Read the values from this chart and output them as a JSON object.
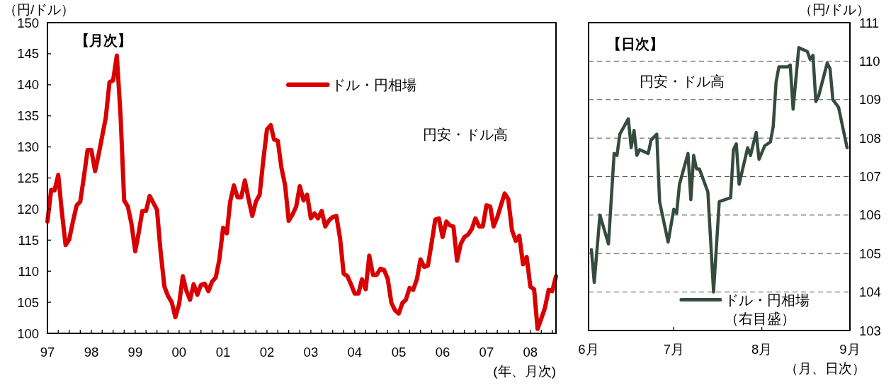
{
  "chart_data": [
    {
      "type": "line",
      "title": "【月次】",
      "annotations": [
        "円安・ドル高"
      ],
      "ylabel": "（円/ドル）",
      "xlabel": "(年、月次)",
      "legend": "top",
      "x": [
        "1997-01",
        "1997-02",
        "1997-03",
        "1997-04",
        "1997-05",
        "1997-06",
        "1997-07",
        "1997-08",
        "1997-09",
        "1997-10",
        "1997-11",
        "1997-12",
        "1998-01",
        "1998-02",
        "1998-03",
        "1998-04",
        "1998-05",
        "1998-06",
        "1998-07",
        "1998-08",
        "1998-09",
        "1998-10",
        "1998-11",
        "1998-12",
        "1999-01",
        "1999-02",
        "1999-03",
        "1999-04",
        "1999-05",
        "1999-06",
        "1999-07",
        "1999-08",
        "1999-09",
        "1999-10",
        "1999-11",
        "1999-12",
        "2000-01",
        "2000-02",
        "2000-03",
        "2000-04",
        "2000-05",
        "2000-06",
        "2000-07",
        "2000-08",
        "2000-09",
        "2000-10",
        "2000-11",
        "2000-12",
        "2001-01",
        "2001-02",
        "2001-03",
        "2001-04",
        "2001-05",
        "2001-06",
        "2001-07",
        "2001-08",
        "2001-09",
        "2001-10",
        "2001-11",
        "2001-12",
        "2002-01",
        "2002-02",
        "2002-03",
        "2002-04",
        "2002-05",
        "2002-06",
        "2002-07",
        "2002-08",
        "2002-09",
        "2002-10",
        "2002-11",
        "2002-12",
        "2003-01",
        "2003-02",
        "2003-03",
        "2003-04",
        "2003-05",
        "2003-06",
        "2003-07",
        "2003-08",
        "2003-09",
        "2003-10",
        "2003-11",
        "2003-12",
        "2004-01",
        "2004-02",
        "2004-03",
        "2004-04",
        "2004-05",
        "2004-06",
        "2004-07",
        "2004-08",
        "2004-09",
        "2004-10",
        "2004-11",
        "2004-12",
        "2005-01",
        "2005-02",
        "2005-03",
        "2005-04",
        "2005-05",
        "2005-06",
        "2005-07",
        "2005-08",
        "2005-09",
        "2005-10",
        "2005-11",
        "2005-12",
        "2006-01",
        "2006-02",
        "2006-03",
        "2006-04",
        "2006-05",
        "2006-06",
        "2006-07",
        "2006-08",
        "2006-09",
        "2006-10",
        "2006-11",
        "2006-12",
        "2007-01",
        "2007-02",
        "2007-03",
        "2007-04",
        "2007-05",
        "2007-06",
        "2007-07",
        "2007-08",
        "2007-09",
        "2007-10",
        "2007-11",
        "2007-12",
        "2008-01",
        "2008-02",
        "2008-03",
        "2008-04",
        "2008-05",
        "2008-06",
        "2008-07",
        "2008-08"
      ],
      "series": [
        {
          "name": "ドル・円相場",
          "color": "#d80000",
          "values": [
            118.0,
            123.1,
            123.0,
            125.5,
            119.5,
            114.2,
            115.1,
            118.0,
            120.6,
            121.2,
            125.3,
            129.5,
            129.5,
            126.1,
            128.6,
            131.7,
            134.7,
            140.4,
            140.7,
            144.7,
            135.1,
            121.4,
            120.4,
            117.6,
            113.2,
            116.4,
            119.7,
            119.7,
            122.1,
            121.0,
            119.9,
            113.0,
            107.5,
            106.0,
            105.0,
            102.6,
            104.7,
            109.2,
            106.9,
            105.4,
            107.9,
            106.2,
            107.8,
            108.0,
            106.8,
            108.3,
            109.0,
            111.9,
            117.0,
            116.1,
            121.2,
            123.8,
            121.9,
            121.9,
            124.6,
            121.6,
            118.9,
            121.2,
            122.3,
            127.8,
            132.8,
            133.5,
            131.2,
            131.0,
            126.7,
            123.8,
            118.1,
            119.1,
            120.4,
            123.7,
            121.4,
            122.3,
            118.5,
            119.3,
            118.5,
            119.7,
            117.2,
            118.2,
            118.7,
            118.9,
            115.3,
            109.6,
            109.2,
            107.9,
            106.4,
            106.4,
            108.7,
            107.1,
            112.5,
            109.4,
            109.4,
            110.4,
            110.2,
            108.8,
            104.9,
            103.7,
            103.2,
            104.9,
            105.4,
            107.3,
            107.0,
            108.7,
            111.9,
            110.7,
            110.9,
            114.5,
            118.3,
            118.5,
            115.5,
            118.0,
            117.4,
            117.2,
            111.7,
            114.4,
            115.5,
            115.9,
            116.8,
            118.5,
            117.2,
            117.2,
            120.6,
            120.4,
            117.2,
            118.7,
            120.6,
            122.5,
            121.6,
            116.6,
            114.9,
            115.7,
            111.1,
            112.3,
            107.5,
            107.1,
            100.7,
            102.4,
            104.1,
            107.0,
            106.8,
            109.2
          ]
        }
      ],
      "xlim": [
        "1997-01",
        "2008-08"
      ],
      "xticks": [
        {
          "value": "1997-01",
          "label": "97"
        },
        {
          "value": "1997-04",
          "label": null
        },
        {
          "value": "1997-07",
          "label": null
        },
        {
          "value": "1997-10",
          "label": null
        },
        {
          "value": "1998-01",
          "label": "98"
        },
        {
          "value": "1998-04",
          "label": null
        },
        {
          "value": "1998-07",
          "label": null
        },
        {
          "value": "1998-10",
          "label": null
        },
        {
          "value": "1999-01",
          "label": "99"
        },
        {
          "value": "1999-04",
          "label": null
        },
        {
          "value": "1999-07",
          "label": null
        },
        {
          "value": "1999-10",
          "label": null
        },
        {
          "value": "2000-01",
          "label": "00"
        },
        {
          "value": "2000-04",
          "label": null
        },
        {
          "value": "2000-07",
          "label": null
        },
        {
          "value": "2000-10",
          "label": null
        },
        {
          "value": "2001-01",
          "label": "01"
        },
        {
          "value": "2001-04",
          "label": null
        },
        {
          "value": "2001-07",
          "label": null
        },
        {
          "value": "2001-10",
          "label": null
        },
        {
          "value": "2002-01",
          "label": "02"
        },
        {
          "value": "2002-04",
          "label": null
        },
        {
          "value": "2002-07",
          "label": null
        },
        {
          "value": "2002-10",
          "label": null
        },
        {
          "value": "2003-01",
          "label": "03"
        },
        {
          "value": "2003-04",
          "label": null
        },
        {
          "value": "2003-07",
          "label": null
        },
        {
          "value": "2003-10",
          "label": null
        },
        {
          "value": "2004-01",
          "label": "04"
        },
        {
          "value": "2004-04",
          "label": null
        },
        {
          "value": "2004-07",
          "label": null
        },
        {
          "value": "2004-10",
          "label": null
        },
        {
          "value": "2005-01",
          "label": "05"
        },
        {
          "value": "2005-04",
          "label": null
        },
        {
          "value": "2005-07",
          "label": null
        },
        {
          "value": "2005-10",
          "label": null
        },
        {
          "value": "2006-01",
          "label": "06"
        },
        {
          "value": "2006-04",
          "label": null
        },
        {
          "value": "2006-07",
          "label": null
        },
        {
          "value": "2006-10",
          "label": null
        },
        {
          "value": "2007-01",
          "label": "07"
        },
        {
          "value": "2007-04",
          "label": null
        },
        {
          "value": "2007-07",
          "label": null
        },
        {
          "value": "2007-10",
          "label": null
        },
        {
          "value": "2008-01",
          "label": "08"
        },
        {
          "value": "2008-04",
          "label": null
        },
        {
          "value": "2008-07",
          "label": null
        }
      ],
      "ylim": [
        100,
        150
      ],
      "yticks": [
        100,
        105,
        110,
        115,
        120,
        125,
        130,
        135,
        140,
        145,
        150
      ]
    },
    {
      "type": "line",
      "title": "【日次】",
      "annotations": [
        "円安・ドル高"
      ],
      "y2label": "（円/ドル）",
      "xlabel": "（月、日次）",
      "legend": "bottom",
      "grid": "y",
      "x": [
        "--06-02",
        "--06-03",
        "--06-05",
        "--06-08",
        "--06-10",
        "--06-11",
        "--06-12",
        "--06-15",
        "--06-16",
        "--06-17",
        "--06-18",
        "--06-19",
        "--06-22",
        "--06-23",
        "--06-25",
        "--06-26",
        "--06-29",
        "--07-01",
        "--07-02",
        "--07-03",
        "--07-06",
        "--07-07",
        "--07-08",
        "--07-09",
        "--07-10",
        "--07-13",
        "--07-15",
        "--07-17",
        "--07-19",
        "--07-21",
        "--07-22",
        "--07-23",
        "--07-24",
        "--07-27",
        "--07-28",
        "--07-30",
        "--07-31",
        "--08-02",
        "--08-04",
        "--08-05",
        "--08-06",
        "--08-07",
        "--08-10",
        "--08-11",
        "--08-12",
        "--08-14",
        "--08-17",
        "--08-18",
        "--08-19",
        "--08-20",
        "--08-21",
        "--08-24",
        "--08-25",
        "--08-26",
        "--08-28",
        "--08-31"
      ],
      "series": [
        {
          "name": "ドル・円相場（右目盛）",
          "color": "#354b3d",
          "axis": "y2",
          "values": [
            105.1,
            104.25,
            106.0,
            105.25,
            107.6,
            107.55,
            108.1,
            108.5,
            107.75,
            108.2,
            107.55,
            107.7,
            107.6,
            107.95,
            108.1,
            106.35,
            105.3,
            106.15,
            106.05,
            106.8,
            107.6,
            106.4,
            107.55,
            107.2,
            107.2,
            106.6,
            104.0,
            106.35,
            106.4,
            106.45,
            107.7,
            107.85,
            106.8,
            107.75,
            107.55,
            108.15,
            107.45,
            107.8,
            107.9,
            108.3,
            109.45,
            109.85,
            109.85,
            109.9,
            108.75,
            110.35,
            110.25,
            110.05,
            110.15,
            108.95,
            109.1,
            109.95,
            109.8,
            109.0,
            108.8,
            107.75
          ]
        }
      ],
      "xlim": [
        "--06-01",
        "--09-01"
      ],
      "xticks": [
        {
          "value": "--06-01",
          "label": "6月"
        },
        {
          "value": "--07-01",
          "label": "7月"
        },
        {
          "value": "--08-01",
          "label": "8月"
        },
        {
          "value": "--09-01",
          "label": "9月"
        }
      ],
      "y2lim": [
        103,
        111
      ],
      "y2ticks": [
        103,
        104,
        105,
        106,
        107,
        108,
        109,
        110,
        111
      ]
    }
  ]
}
